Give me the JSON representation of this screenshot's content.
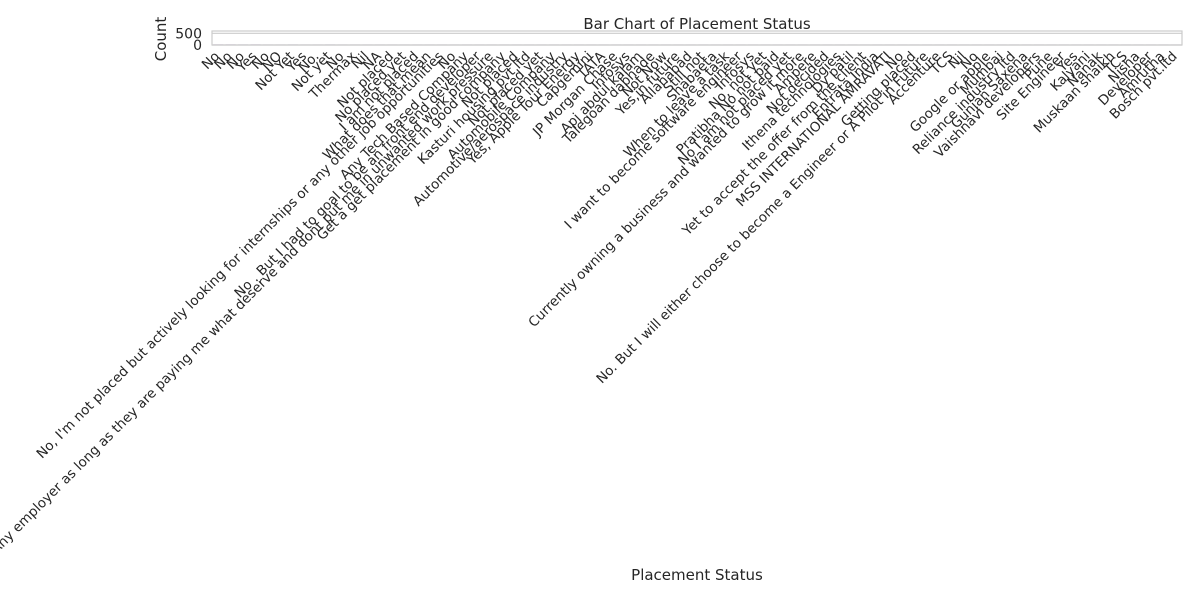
{
  "chart_data": {
    "type": "bar",
    "title": "Bar Chart of Placement Status",
    "xlabel": "Placement Status",
    "ylabel": "Count",
    "y_ticks": [
      0,
      500
    ],
    "ylim": [
      0,
      600
    ],
    "grid": true,
    "bar_color": "#7b5aa6",
    "categories": [
      "No",
      "No",
      "No",
      "Yes",
      "No",
      "NO",
      "Not Yet",
      "Yes",
      "No.",
      "Not yet",
      "No",
      "Thermax",
      "Nil",
      "NA",
      "Not placed",
      "No placed yet",
      "I am not placed",
      "What does that mean",
      "No, I'm not placed but actively looking for internships or any other job opportunities",
      "No",
      "Any Tech Based Company",
      "No . But I had to goal to be an front end developer",
      "Any employer as long as they are paying me what deserve and dont put me in unwanted work pressure",
      "Get a get placement in good company",
      "Not placed",
      "Kasturi housing pvt ltd",
      "Not placed yet",
      "Automobile Company",
      "Automotive/aerospace industry",
      "Yes, Apple Tour Energy",
      "Capgemini",
      "TATA",
      "JP Morgan Chase",
      "Infosys",
      "Apj abdul kalam",
      "Talegoan dabhade",
      "Not Now",
      "Yes,in future",
      "Allahabad",
      "Still not",
      "Shabaeta",
      "When to leave a task",
      "I want to become software engineer",
      "Infosys",
      "No, not yet",
      "Pratibha No not paid",
      "No I am not placed yet",
      "Currently owning a business and wanted to grow it more",
      "Ampere",
      "Not decided",
      "Ithena technologies",
      "Dy patil",
      "Yet to accept the offer from the client",
      "Entrata India",
      "MSS INTERNATIONAL AMRAVATI",
      "No",
      "Getting placed",
      "No. But I will either choose to become a Engineer or A Pilot in Future",
      "Accenture",
      "TCS",
      "Nil",
      "No",
      "Google or apple",
      "Mumbai",
      "Reliance industry ltd",
      "Gunjan Saxena",
      "Vaishnavi developers",
      "Pune",
      "Site Engineer",
      "Yes",
      "Kalyani",
      "Nanak",
      "Muskaan shaikh",
      "TCS",
      "Nisha",
      "Developer",
      "Amrutha",
      "Bosch pvt.ltd"
    ],
    "values": [
      3,
      3,
      2,
      3,
      1,
      1,
      2,
      1,
      1,
      2,
      1,
      1,
      1,
      1,
      1,
      1,
      1,
      1,
      1,
      1,
      1,
      1,
      1,
      1,
      1,
      1,
      1,
      1,
      1,
      1,
      1,
      1,
      1,
      1,
      1,
      1,
      1,
      1,
      1,
      1,
      1,
      1,
      1,
      1,
      1,
      1,
      1,
      1,
      1,
      1,
      1,
      1,
      1,
      1,
      1,
      1,
      1,
      1,
      1,
      1,
      1,
      1,
      1,
      1,
      1,
      1,
      1,
      1,
      1,
      1,
      1,
      1,
      1,
      1,
      1,
      1,
      1,
      1
    ]
  }
}
